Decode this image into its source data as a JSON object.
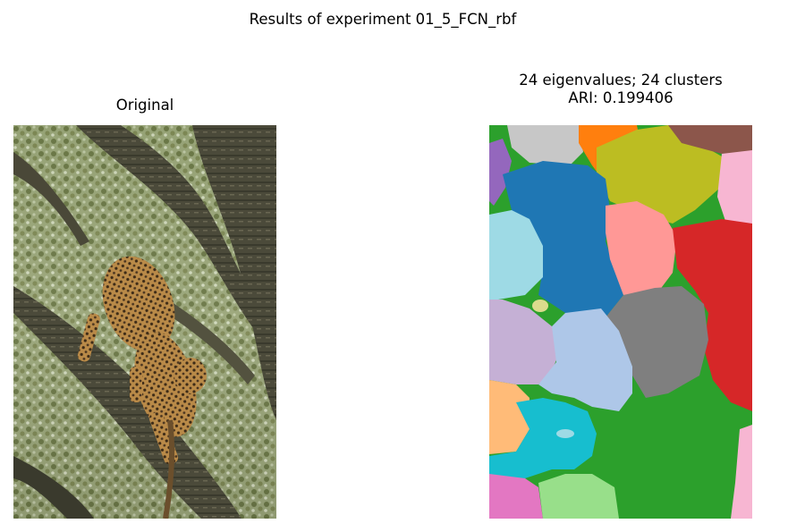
{
  "figure": {
    "suptitle": "Results of experiment 01_5_FCN_rbf"
  },
  "left_panel": {
    "title": "Original",
    "image_alt": "Leopard climbing down a tree trunk"
  },
  "right_panel": {
    "title_line1": "24 eigenvalues; 24 clusters",
    "title_line2": "ARI: 0.199406",
    "image_alt": "Segmentation map of the leopard image into 24 colored clusters"
  },
  "colors": {
    "blue": "#1f77b4",
    "orange": "#ff7f0e",
    "green": "#2ca02c",
    "red": "#d62728",
    "gray": "#7f7f7f",
    "olive": "#bcbd22",
    "cyan": "#17becf",
    "light_blue": "#aec7e8",
    "light_cyan": "#9edae5",
    "pink": "#e377c2",
    "light_pink": "#f7b6d2",
    "brown": "#8c564b",
    "light_purple": "#c5b0d5",
    "purple": "#9467bd",
    "light_orange": "#ffbb78",
    "light_green": "#98df8a",
    "light_red": "#ff9896",
    "light_gray": "#c7c7c7",
    "light_olive": "#dbdb8d"
  }
}
